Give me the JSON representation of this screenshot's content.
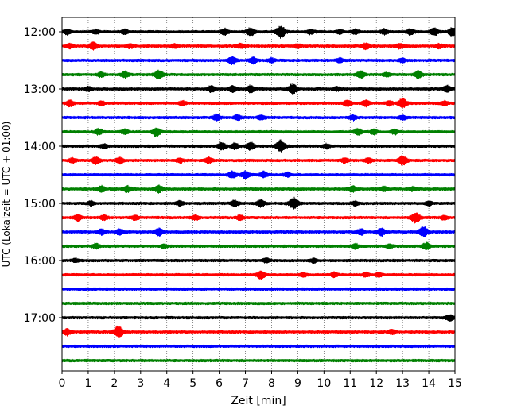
{
  "chart_data": {
    "type": "line",
    "xlabel": "Zeit  [min]",
    "ylabel": "UTC (Lokalzeit = UTC + 01:00)",
    "xlim": [
      0,
      15
    ],
    "x_ticks": [
      0,
      1,
      2,
      3,
      4,
      5,
      6,
      7,
      8,
      9,
      10,
      11,
      12,
      13,
      14,
      15
    ],
    "y_ticks": [
      "12:00",
      "13:00",
      "14:00",
      "15:00",
      "16:00",
      "17:00"
    ],
    "grid": "vertical dotted at each minute",
    "trace_colors": [
      "#000000",
      "#ff0000",
      "#0000ff",
      "#008000"
    ],
    "traces": [
      {
        "start": "12:00",
        "color": "#000000",
        "events": [
          [
            0.2,
            0.35
          ],
          [
            1.3,
            0.3
          ],
          [
            2.4,
            0.3
          ],
          [
            6.2,
            0.45
          ],
          [
            7.2,
            0.55
          ],
          [
            8.35,
            0.9
          ],
          [
            9.5,
            0.35
          ],
          [
            10.6,
            0.3
          ],
          [
            11.2,
            0.35
          ],
          [
            12.3,
            0.4
          ],
          [
            13.3,
            0.45
          ],
          [
            14.2,
            0.55
          ],
          [
            14.9,
            0.55
          ]
        ]
      },
      {
        "start": "12:15",
        "color": "#ff0000",
        "events": [
          [
            0.3,
            0.35
          ],
          [
            1.2,
            0.55
          ],
          [
            2.6,
            0.3
          ],
          [
            4.3,
            0.3
          ],
          [
            6.8,
            0.35
          ],
          [
            9.0,
            0.3
          ],
          [
            11.6,
            0.45
          ],
          [
            12.9,
            0.35
          ],
          [
            14.4,
            0.3
          ]
        ]
      },
      {
        "start": "12:30",
        "color": "#0000ff",
        "events": [
          [
            6.5,
            0.55
          ],
          [
            7.3,
            0.45
          ],
          [
            8.0,
            0.3
          ],
          [
            10.6,
            0.3
          ],
          [
            13.0,
            0.3
          ]
        ]
      },
      {
        "start": "12:45",
        "color": "#008000",
        "events": [
          [
            1.5,
            0.35
          ],
          [
            2.4,
            0.45
          ],
          [
            3.7,
            0.7
          ],
          [
            11.4,
            0.5
          ],
          [
            12.4,
            0.3
          ],
          [
            13.6,
            0.55
          ]
        ]
      },
      {
        "start": "13:00",
        "color": "#000000",
        "events": [
          [
            1.0,
            0.3
          ],
          [
            5.7,
            0.45
          ],
          [
            6.5,
            0.45
          ],
          [
            7.2,
            0.5
          ],
          [
            8.8,
            0.75
          ],
          [
            10.5,
            0.3
          ],
          [
            14.7,
            0.45
          ]
        ]
      },
      {
        "start": "13:15",
        "color": "#ff0000",
        "events": [
          [
            0.3,
            0.45
          ],
          [
            1.5,
            0.3
          ],
          [
            4.6,
            0.35
          ],
          [
            10.9,
            0.45
          ],
          [
            11.6,
            0.45
          ],
          [
            12.5,
            0.3
          ],
          [
            13.0,
            0.7
          ],
          [
            14.6,
            0.3
          ]
        ]
      },
      {
        "start": "13:30",
        "color": "#0000ff",
        "events": [
          [
            5.9,
            0.45
          ],
          [
            6.7,
            0.35
          ],
          [
            7.6,
            0.35
          ],
          [
            11.1,
            0.35
          ],
          [
            13.0,
            0.3
          ]
        ]
      },
      {
        "start": "13:45",
        "color": "#008000",
        "events": [
          [
            1.4,
            0.45
          ],
          [
            2.4,
            0.35
          ],
          [
            3.6,
            0.6
          ],
          [
            11.3,
            0.45
          ],
          [
            11.9,
            0.35
          ],
          [
            12.7,
            0.35
          ]
        ]
      },
      {
        "start": "14:00",
        "color": "#000000",
        "events": [
          [
            1.6,
            0.3
          ],
          [
            6.1,
            0.55
          ],
          [
            6.6,
            0.45
          ],
          [
            7.2,
            0.55
          ],
          [
            8.35,
            0.85
          ],
          [
            10.1,
            0.3
          ]
        ]
      },
      {
        "start": "14:15",
        "color": "#ff0000",
        "events": [
          [
            0.4,
            0.35
          ],
          [
            1.3,
            0.55
          ],
          [
            2.2,
            0.45
          ],
          [
            4.5,
            0.3
          ],
          [
            5.6,
            0.45
          ],
          [
            10.8,
            0.35
          ],
          [
            11.7,
            0.35
          ],
          [
            13.0,
            0.7
          ]
        ]
      },
      {
        "start": "14:30",
        "color": "#0000ff",
        "events": [
          [
            6.5,
            0.5
          ],
          [
            7.0,
            0.55
          ],
          [
            7.7,
            0.45
          ],
          [
            8.6,
            0.3
          ]
        ]
      },
      {
        "start": "14:45",
        "color": "#008000",
        "events": [
          [
            1.5,
            0.45
          ],
          [
            2.5,
            0.45
          ],
          [
            3.7,
            0.55
          ],
          [
            11.1,
            0.45
          ],
          [
            12.3,
            0.35
          ],
          [
            13.4,
            0.3
          ]
        ]
      },
      {
        "start": "15:00",
        "color": "#000000",
        "events": [
          [
            1.1,
            0.3
          ],
          [
            4.5,
            0.35
          ],
          [
            6.6,
            0.45
          ],
          [
            7.6,
            0.5
          ],
          [
            8.85,
            0.8
          ],
          [
            11.2,
            0.3
          ],
          [
            14.0,
            0.3
          ]
        ]
      },
      {
        "start": "15:15",
        "color": "#ff0000",
        "events": [
          [
            0.6,
            0.45
          ],
          [
            1.6,
            0.35
          ],
          [
            2.8,
            0.35
          ],
          [
            5.1,
            0.35
          ],
          [
            6.8,
            0.35
          ],
          [
            13.5,
            0.75
          ],
          [
            14.6,
            0.3
          ]
        ]
      },
      {
        "start": "15:30",
        "color": "#0000ff",
        "events": [
          [
            1.5,
            0.45
          ],
          [
            2.2,
            0.45
          ],
          [
            3.7,
            0.55
          ],
          [
            11.4,
            0.45
          ],
          [
            12.2,
            0.55
          ],
          [
            13.8,
            0.75
          ]
        ]
      },
      {
        "start": "15:45",
        "color": "#008000",
        "events": [
          [
            1.3,
            0.35
          ],
          [
            3.9,
            0.25
          ],
          [
            11.2,
            0.35
          ],
          [
            12.5,
            0.3
          ],
          [
            13.9,
            0.5
          ]
        ]
      },
      {
        "start": "16:00",
        "color": "#000000",
        "events": [
          [
            0.5,
            0.25
          ],
          [
            7.8,
            0.35
          ],
          [
            9.6,
            0.3
          ]
        ]
      },
      {
        "start": "16:15",
        "color": "#ff0000",
        "events": [
          [
            7.6,
            0.6
          ],
          [
            9.2,
            0.3
          ],
          [
            10.4,
            0.35
          ],
          [
            11.6,
            0.3
          ],
          [
            12.1,
            0.3
          ]
        ]
      },
      {
        "start": "16:30",
        "color": "#0000ff",
        "events": []
      },
      {
        "start": "16:45",
        "color": "#008000",
        "events": []
      },
      {
        "start": "17:00",
        "color": "#000000",
        "events": [
          [
            14.8,
            0.5
          ]
        ]
      },
      {
        "start": "17:15",
        "color": "#ff0000",
        "events": [
          [
            0.2,
            0.45
          ],
          [
            2.15,
            0.85
          ],
          [
            12.6,
            0.35
          ]
        ]
      },
      {
        "start": "17:30",
        "color": "#0000ff",
        "events": []
      },
      {
        "start": "17:45",
        "color": "#008000",
        "events": []
      }
    ]
  }
}
